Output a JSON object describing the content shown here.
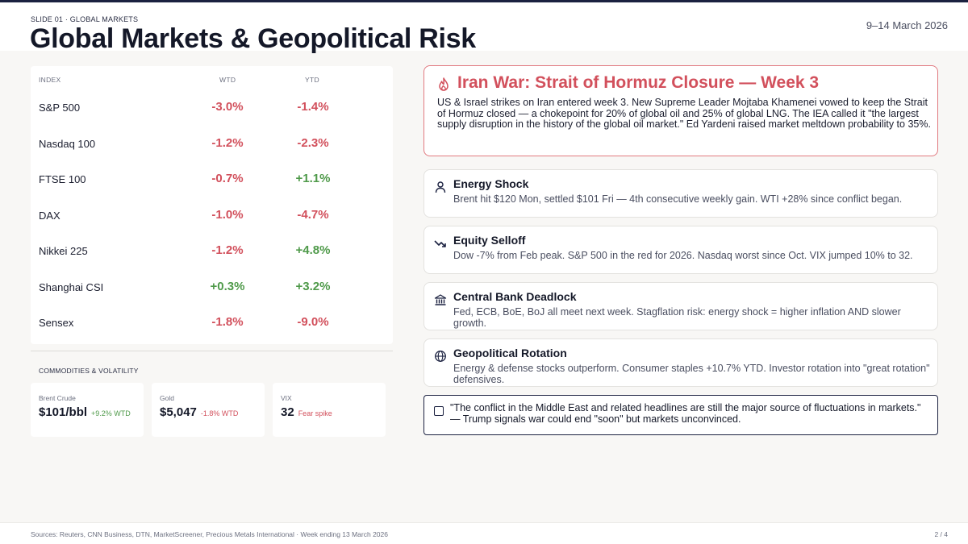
{
  "header": {
    "eyebrow": "SLIDE 01 · GLOBAL MARKETS",
    "title": "Global Markets & Geopolitical Risk",
    "date": "9–14 March 2026"
  },
  "indices": {
    "headers": {
      "index": "INDEX",
      "wtd": "WTD",
      "ytd": "YTD"
    },
    "rows": [
      {
        "name": "S&P 500",
        "wtd": "-3.0%",
        "ytd": "-1.4%"
      },
      {
        "name": "Nasdaq 100",
        "wtd": "-1.2%",
        "ytd": "-2.3%"
      },
      {
        "name": "FTSE 100",
        "wtd": "-0.7%",
        "ytd": "+1.1%"
      },
      {
        "name": "DAX",
        "wtd": "-1.0%",
        "ytd": "-4.7%"
      },
      {
        "name": "Nikkei 225",
        "wtd": "-1.2%",
        "ytd": "+4.8%"
      },
      {
        "name": "Shanghai CSI",
        "wtd": "+0.3%",
        "ytd": "+3.2%"
      },
      {
        "name": "Sensex",
        "wtd": "-1.8%",
        "ytd": "-9.0%"
      }
    ]
  },
  "commodities": {
    "label": "COMMODITIES & VOLATILITY",
    "items": [
      {
        "name": "Brent Crude",
        "value": "$101/bbl",
        "change": "+9.2% WTD"
      },
      {
        "name": "Gold",
        "value": "$5,047",
        "change": "-1.8% WTD"
      },
      {
        "name": "VIX",
        "value": "32",
        "change": "Fear spike"
      }
    ]
  },
  "hero": {
    "title": "Iran War: Strait of Hormuz Closure — Week 3",
    "body": "US & Israel strikes on Iran entered week 3. New Supreme Leader Mojtaba Khamenei vowed to keep the Strait of Hormuz closed — a chokepoint for 20% of global oil and 25% of global LNG. The IEA called it \"the largest supply disruption in the history of the global oil market.\" Ed Yardeni raised market meltdown probability to 35%."
  },
  "items": [
    {
      "title": "Energy Shock",
      "body": "Brent hit $120 Mon, settled $101 Fri — 4th consecutive weekly gain. WTI +28% since conflict began."
    },
    {
      "title": "Equity Selloff",
      "body": "Dow -7% from Feb peak. S&P 500 in the red for 2026. Nasdaq worst since Oct. VIX jumped 10% to 32."
    },
    {
      "title": "Central Bank Deadlock",
      "body": "Fed, ECB, BoE, BoJ all meet next week. Stagflation risk: energy shock = higher inflation AND slower growth."
    },
    {
      "title": "Geopolitical Rotation",
      "body": "Energy & defense stocks outperform. Consumer staples +10.7% YTD. Investor rotation into \"great rotation\" defensives."
    }
  ],
  "quote": {
    "line1": "\"The conflict in the Middle East and related headlines are still the major source of fluctuations in markets.\"",
    "line2": "— Trump signals war could end \"soon\" but markets unconvinced."
  },
  "footer": {
    "sources": "Sources: Reuters, CNN Business, DTN, MarketScreener, Precious Metals International · Week ending 13 March 2026",
    "page": "2 / 4"
  },
  "colors": {
    "navy": "#1b2140",
    "negative": "#d2505c",
    "positive": "#4f9a4a",
    "background": "#f8f7f5"
  }
}
